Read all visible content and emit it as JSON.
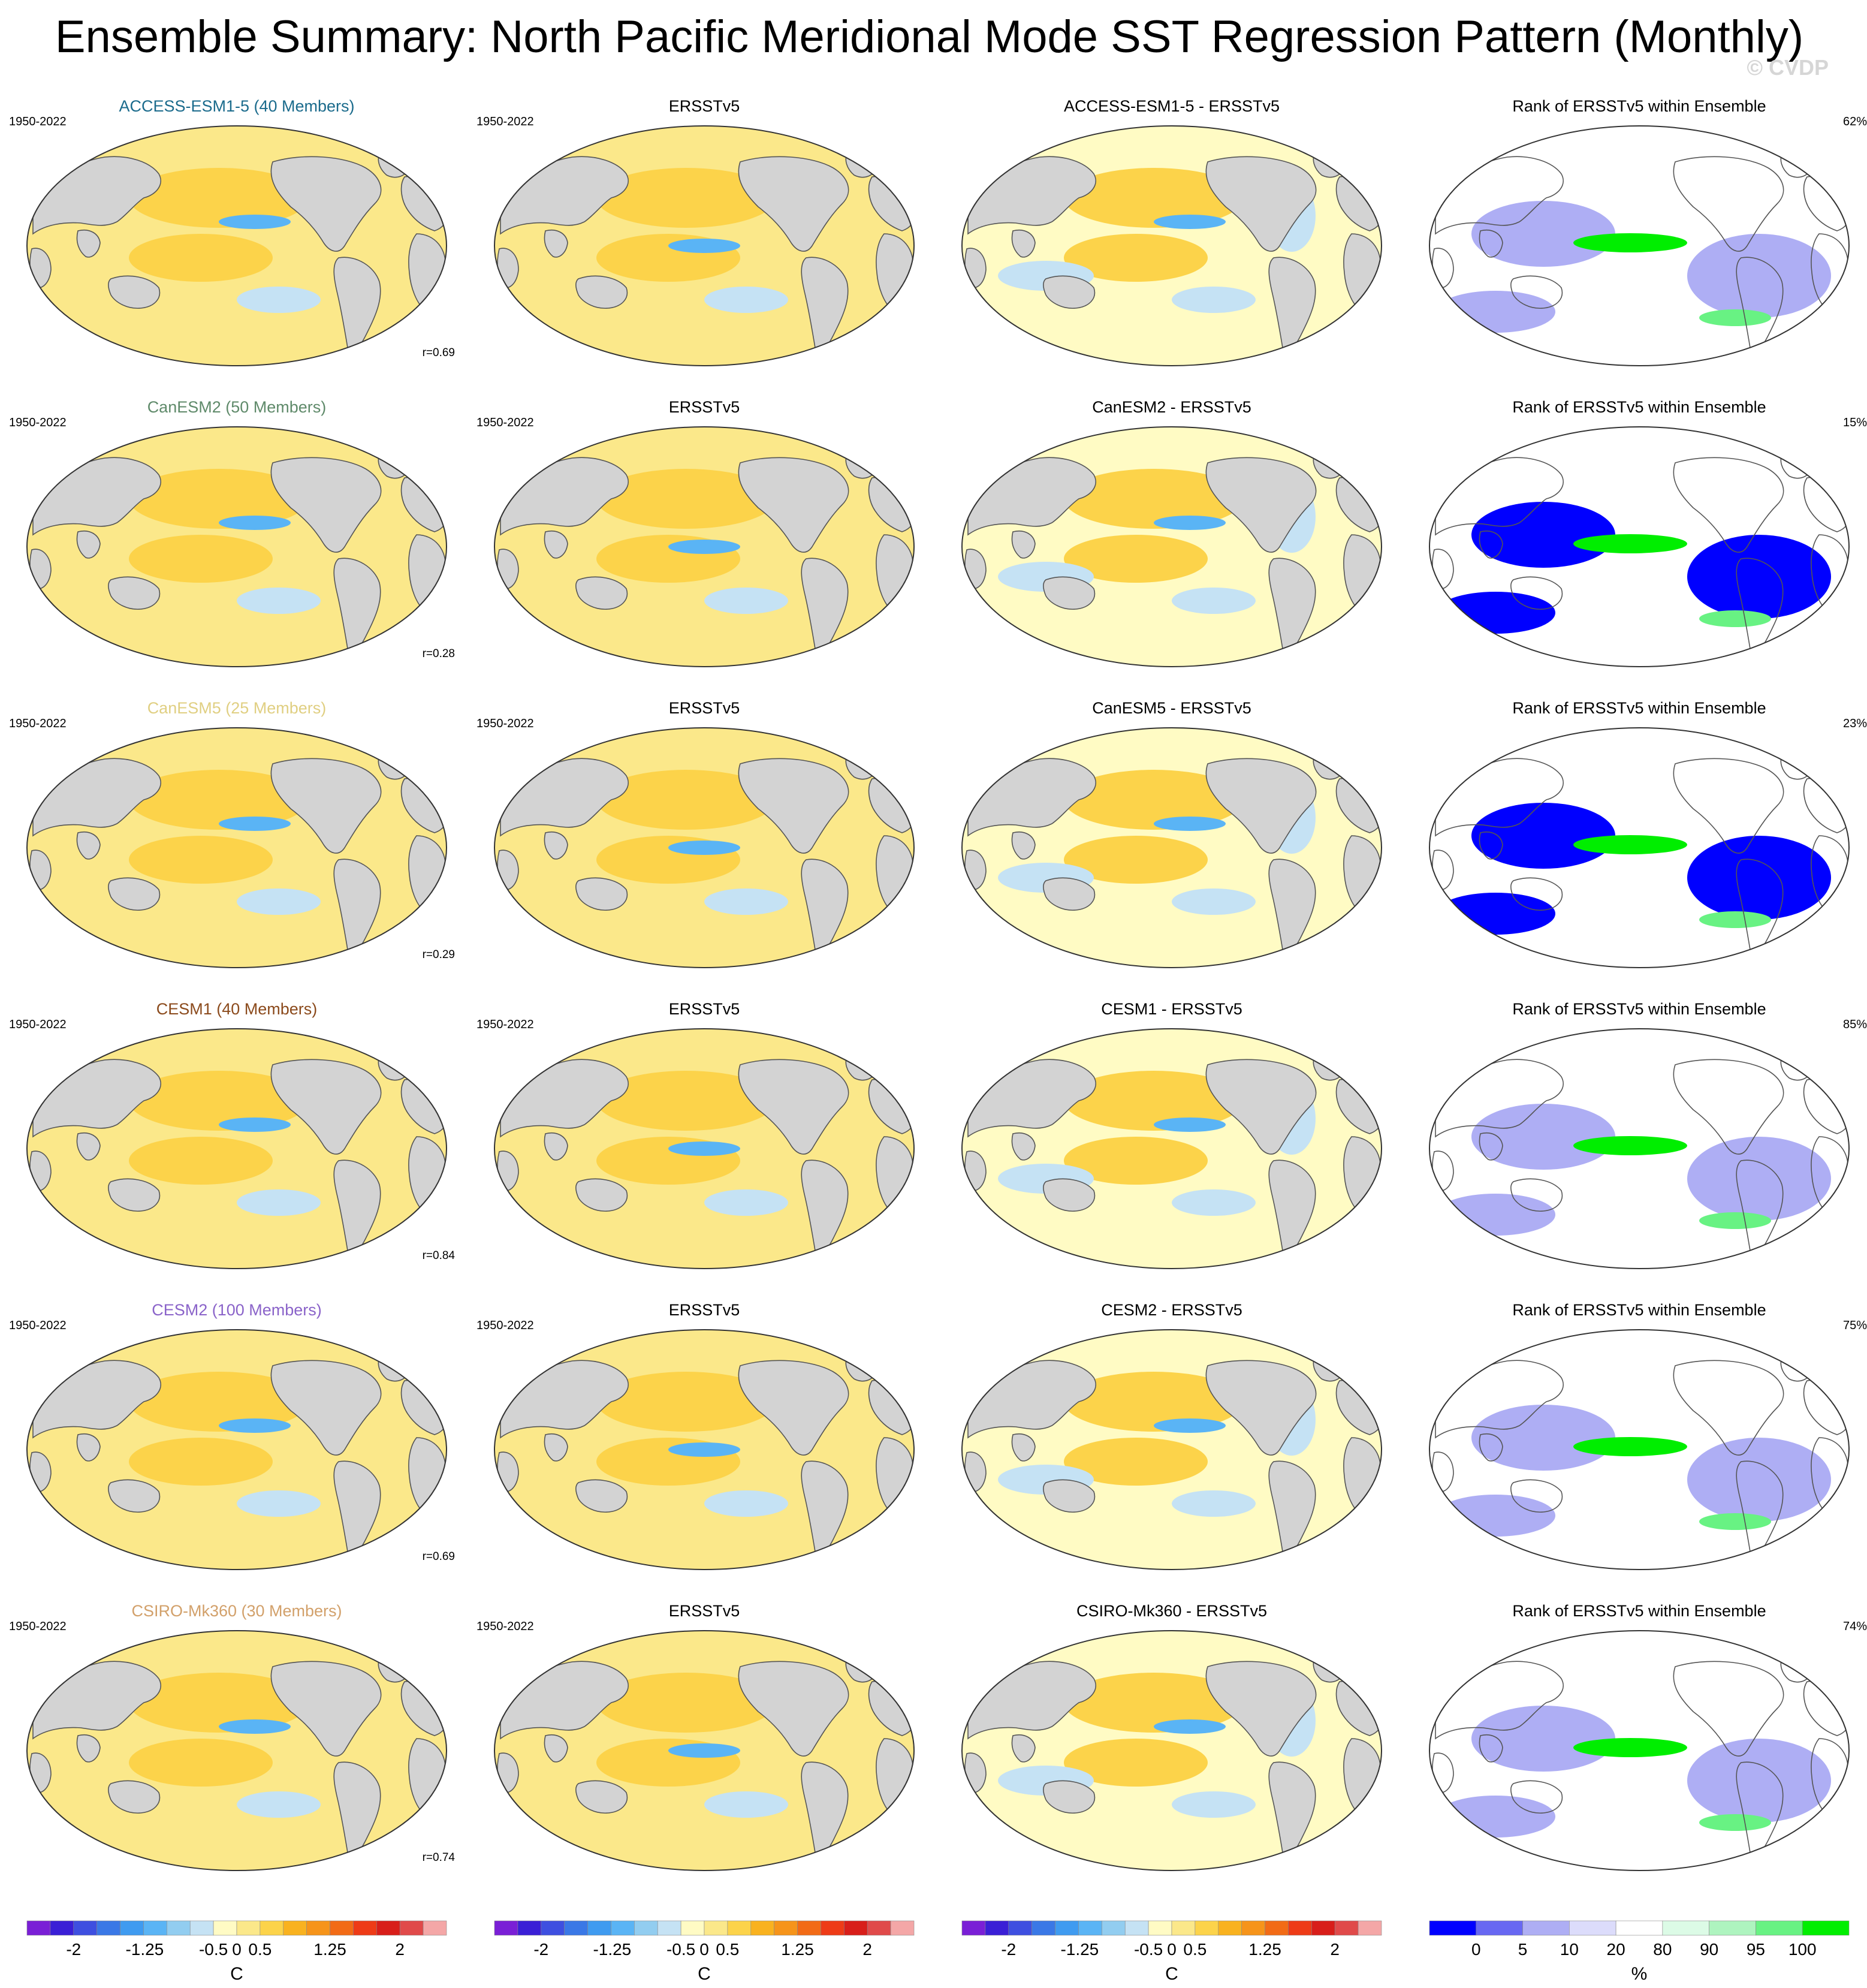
{
  "title": "Ensemble Summary: North Pacific Meridional Mode SST Regression Pattern (Monthly)",
  "watermark": "© CVDP",
  "rows": [
    {
      "model": "ACCESS-ESM1-5 (40 Members)",
      "model_color": "#1b6b8c",
      "years": "1950-2022",
      "r": "r=0.69",
      "diff_title": "ACCESS-ESM1-5 - ERSSTv5",
      "rank_pct": "62%"
    },
    {
      "model": "CanESM2 (50 Members)",
      "model_color": "#5f8a6a",
      "years": "1950-2022",
      "r": "r=0.28",
      "diff_title": "CanESM2 - ERSSTv5",
      "rank_pct": "15%"
    },
    {
      "model": "CanESM5 (25 Members)",
      "model_color": "#e0cf82",
      "years": "1950-2022",
      "r": "r=0.29",
      "diff_title": "CanESM5 - ERSSTv5",
      "rank_pct": "23%"
    },
    {
      "model": "CESM1 (40 Members)",
      "model_color": "#8b4a1c",
      "years": "1950-2022",
      "r": "r=0.84",
      "diff_title": "CESM1 - ERSSTv5",
      "rank_pct": "85%"
    },
    {
      "model": "CESM2 (100 Members)",
      "model_color": "#8a63c9",
      "years": "1950-2022",
      "r": "r=0.69",
      "diff_title": "CESM2 - ERSSTv5",
      "rank_pct": "75%"
    },
    {
      "model": "CSIRO-Mk360 (30 Members)",
      "model_color": "#d2a06a",
      "years": "1950-2022",
      "r": "r=0.74",
      "diff_title": "CSIRO-Mk360 - ERSSTv5",
      "rank_pct": "74%"
    }
  ],
  "obs_title": "ERSSTv5",
  "obs_years": "1950-2022",
  "rank_title": "Rank of ERSSTv5 within Ensemble",
  "sst_colorbar": {
    "unit": "C",
    "labels": [
      "-2",
      "-1.25",
      "-0.5",
      "0",
      "0.5",
      "1.25",
      "2"
    ],
    "colors": [
      "#7a1fd6",
      "#3a1fd6",
      "#3e4fe0",
      "#3a78e6",
      "#3f9bf0",
      "#5ab4f5",
      "#92cdf0",
      "#c5e2f4",
      "#fffbc4",
      "#fbe88a",
      "#fcd34a",
      "#f9b21f",
      "#f6941a",
      "#f26b16",
      "#ee3b17",
      "#d81e1a",
      "#e04a4a",
      "#f4a7a7"
    ]
  },
  "rank_colorbar": {
    "unit": "%",
    "labels": [
      "0",
      "5",
      "10",
      "20",
      "80",
      "90",
      "95",
      "100"
    ],
    "colors": [
      "#0000ff",
      "#6868f2",
      "#aeaef4",
      "#dcdcfb",
      "#ffffff",
      "#dcfbe6",
      "#aef4bf",
      "#68f283",
      "#00ee00"
    ]
  }
}
